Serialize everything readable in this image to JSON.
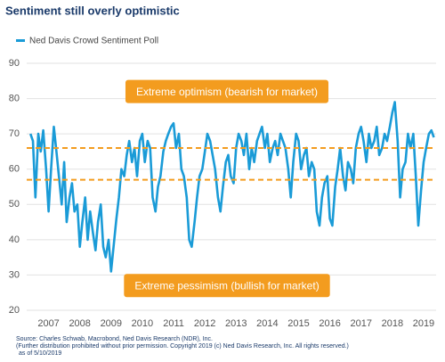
{
  "chart_data": {
    "type": "line",
    "title": "Sentiment still overly optimistic",
    "source": [
      "Source: Charles Schwab, Macrobond, Ned Davis Research (NDR), Inc.",
      "(Further distribution prohibited without prior permission. Copyright 2019 (c) Ned Davis Research, Inc. All rights reserved.)",
      "as of 5/10/2019"
    ],
    "annotations": [
      {
        "text": "Extreme optimism (bearish for market)",
        "y": 82
      },
      {
        "text": "Extreme pessimism (bullish for market)",
        "y": 27
      }
    ],
    "annotation_color": "#f39c1f",
    "reference_lines": [
      66,
      57
    ],
    "reference_color": "#f39c1f",
    "xlim": [
      2006.3,
      2019.4
    ],
    "xticks": [
      {
        "value": 2007,
        "label": "2007"
      },
      {
        "value": 2008,
        "label": "2008"
      },
      {
        "value": 2009,
        "label": "2009"
      },
      {
        "value": 2010,
        "label": "2010"
      },
      {
        "value": 2011,
        "label": "2011"
      },
      {
        "value": 2012,
        "label": "2012"
      },
      {
        "value": 2013,
        "label": "2013"
      },
      {
        "value": 2014,
        "label": "2014"
      },
      {
        "value": 2015,
        "label": "2015"
      },
      {
        "value": 2016,
        "label": "2016"
      },
      {
        "value": 2017,
        "label": "2017"
      },
      {
        "value": 2018,
        "label": "2018"
      },
      {
        "value": 2019,
        "label": "2019"
      }
    ],
    "ylim": [
      20,
      90
    ],
    "yticks": [
      20,
      30,
      40,
      50,
      60,
      70,
      80,
      90
    ],
    "grid": true,
    "x": [
      2006.42,
      2006.5,
      2006.58,
      2006.67,
      2006.75,
      2006.83,
      2006.92,
      2007.0,
      2007.08,
      2007.17,
      2007.25,
      2007.33,
      2007.42,
      2007.5,
      2007.58,
      2007.67,
      2007.75,
      2007.83,
      2007.92,
      2008.0,
      2008.08,
      2008.17,
      2008.25,
      2008.33,
      2008.42,
      2008.5,
      2008.58,
      2008.67,
      2008.75,
      2008.83,
      2008.92,
      2009.0,
      2009.08,
      2009.17,
      2009.25,
      2009.33,
      2009.42,
      2009.5,
      2009.58,
      2009.67,
      2009.75,
      2009.83,
      2009.92,
      2010.0,
      2010.08,
      2010.17,
      2010.25,
      2010.33,
      2010.42,
      2010.5,
      2010.58,
      2010.67,
      2010.75,
      2010.83,
      2010.92,
      2011.0,
      2011.08,
      2011.17,
      2011.25,
      2011.33,
      2011.42,
      2011.5,
      2011.58,
      2011.67,
      2011.75,
      2011.83,
      2011.92,
      2012.0,
      2012.08,
      2012.17,
      2012.25,
      2012.33,
      2012.42,
      2012.5,
      2012.58,
      2012.67,
      2012.75,
      2012.83,
      2012.92,
      2013.0,
      2013.08,
      2013.17,
      2013.25,
      2013.33,
      2013.42,
      2013.5,
      2013.58,
      2013.67,
      2013.75,
      2013.83,
      2013.92,
      2014.0,
      2014.08,
      2014.17,
      2014.25,
      2014.33,
      2014.42,
      2014.5,
      2014.58,
      2014.67,
      2014.75,
      2014.83,
      2014.92,
      2015.0,
      2015.08,
      2015.17,
      2015.25,
      2015.33,
      2015.42,
      2015.5,
      2015.58,
      2015.67,
      2015.75,
      2015.83,
      2015.92,
      2016.0,
      2016.08,
      2016.17,
      2016.25,
      2016.33,
      2016.42,
      2016.5,
      2016.58,
      2016.67,
      2016.75,
      2016.83,
      2016.92,
      2017.0,
      2017.08,
      2017.17,
      2017.25,
      2017.33,
      2017.42,
      2017.5,
      2017.58,
      2017.67,
      2017.75,
      2017.83,
      2017.92,
      2018.0,
      2018.08,
      2018.17,
      2018.25,
      2018.33,
      2018.42,
      2018.5,
      2018.58,
      2018.67,
      2018.75,
      2018.83,
      2018.92,
      2019.0,
      2019.08,
      2019.17,
      2019.25,
      2019.33
    ],
    "series": [
      {
        "name": "Ned Davis Crowd Sentiment Poll",
        "color": "#1a9bd7",
        "values": [
          70,
          68,
          52,
          70,
          65,
          71,
          60,
          48,
          60,
          72,
          65,
          58,
          50,
          62,
          45,
          52,
          56,
          48,
          50,
          38,
          45,
          52,
          40,
          48,
          42,
          37,
          45,
          50,
          38,
          35,
          40,
          31,
          38,
          46,
          52,
          60,
          58,
          64,
          68,
          62,
          66,
          58,
          68,
          70,
          62,
          68,
          66,
          52,
          48,
          55,
          58,
          65,
          68,
          70,
          72,
          73,
          66,
          70,
          60,
          58,
          52,
          40,
          38,
          45,
          52,
          58,
          60,
          65,
          70,
          68,
          64,
          60,
          52,
          48,
          55,
          62,
          64,
          58,
          56,
          66,
          70,
          68,
          64,
          70,
          60,
          66,
          62,
          68,
          70,
          72,
          66,
          70,
          62,
          66,
          68,
          64,
          70,
          68,
          66,
          60,
          52,
          62,
          70,
          68,
          60,
          64,
          66,
          58,
          62,
          60,
          48,
          44,
          52,
          56,
          58,
          46,
          44,
          55,
          60,
          66,
          58,
          54,
          62,
          60,
          56,
          66,
          70,
          72,
          68,
          62,
          70,
          66,
          68,
          72,
          64,
          66,
          70,
          68,
          72,
          76,
          79,
          68,
          52,
          60,
          62,
          70,
          66,
          70,
          58,
          44,
          54,
          62,
          66,
          70,
          71,
          69
        ]
      }
    ]
  }
}
